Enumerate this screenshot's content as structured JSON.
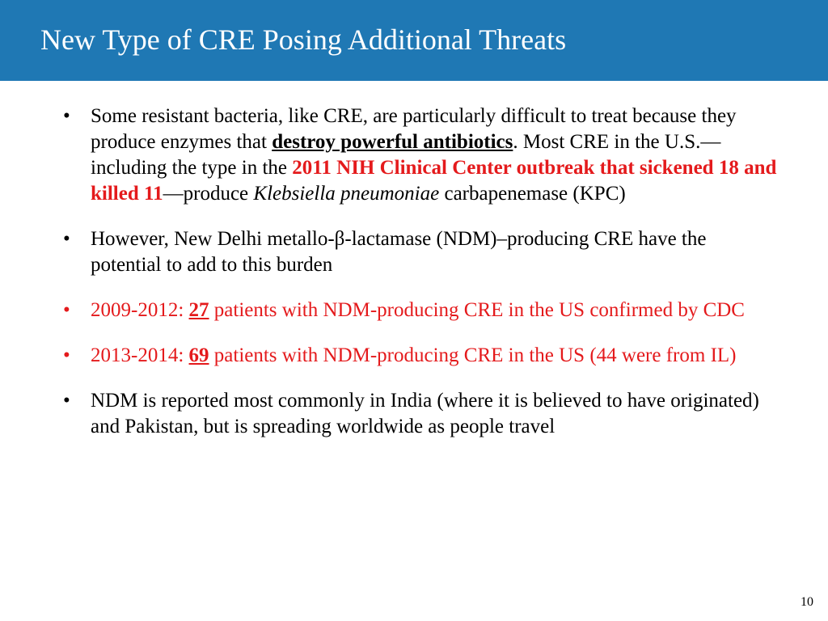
{
  "header": {
    "title": "New Type of CRE Posing Additional Threats",
    "background_color": "#1f78b4",
    "title_color": "#ffffff",
    "title_fontsize": 36
  },
  "content": {
    "bullets": [
      {
        "color": "#000000",
        "segments": [
          {
            "text": "Some resistant bacteria, like CRE, are particularly difficult to treat because they produce enzymes that "
          },
          {
            "text": "destroy powerful antibiotics",
            "bold": true,
            "underline": true
          },
          {
            "text": ". Most CRE in the U.S.—including the type in the "
          },
          {
            "text": "2011 NIH Clinical Center outbreak that sickened 18 and killed 11",
            "bold": true,
            "color": "#e41a1c"
          },
          {
            "text": "—produce "
          },
          {
            "text": "Klebsiella pneumoniae",
            "italic": true
          },
          {
            "text": " carbapenemase (KPC)"
          }
        ]
      },
      {
        "color": "#000000",
        "segments": [
          {
            "text": "However, New Delhi metallo-β-lactamase (NDM)–producing CRE have the potential to add to this burden"
          }
        ]
      },
      {
        "color": "#e41a1c",
        "segments": [
          {
            "text": "2009-2012:  "
          },
          {
            "text": "27",
            "bold": true,
            "underline": true
          },
          {
            "text": " patients with NDM-producing CRE  in the US confirmed by CDC"
          }
        ]
      },
      {
        "color": "#e41a1c",
        "segments": [
          {
            "text": "2013-2014:  "
          },
          {
            "text": "69",
            "bold": true,
            "underline": true
          },
          {
            "text": " patients with NDM-producing CRE in the US (44 were from IL)"
          }
        ]
      },
      {
        "color": "#000000",
        "segments": [
          {
            "text": "NDM is reported most commonly in India (where it is believed to have originated) and Pakistan, but is spreading worldwide as people travel"
          }
        ]
      }
    ],
    "text_fontsize": 25,
    "red_color": "#e41a1c",
    "black_color": "#000000"
  },
  "page_number": "10"
}
